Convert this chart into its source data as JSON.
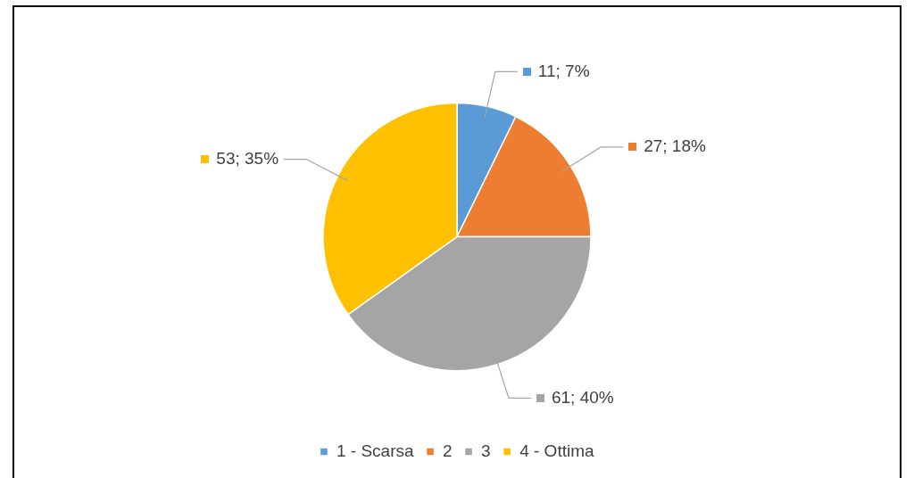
{
  "chart_data": {
    "type": "pie",
    "categories": [
      "1 - Scarsa",
      "2",
      "3",
      "4 - Ottima"
    ],
    "values": [
      11,
      27,
      61,
      53
    ],
    "colors": [
      "#5b9bd5",
      "#ed7d31",
      "#a5a5a5",
      "#ffc000"
    ],
    "value_labels": [
      "11; 7%",
      "27; 18%",
      "61; 40%",
      "53; 35%"
    ],
    "legend": "bottom"
  }
}
